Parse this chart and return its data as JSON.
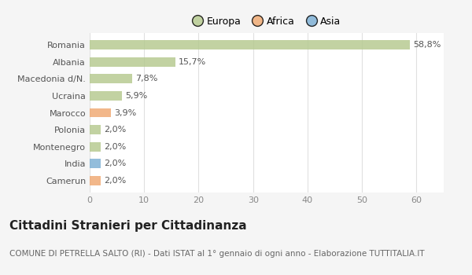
{
  "categories": [
    "Romania",
    "Albania",
    "Macedonia d/N.",
    "Ucraina",
    "Marocco",
    "Polonia",
    "Montenegro",
    "India",
    "Camerun"
  ],
  "values": [
    58.8,
    15.7,
    7.8,
    5.9,
    3.9,
    2.0,
    2.0,
    2.0,
    2.0
  ],
  "labels": [
    "58,8%",
    "15,7%",
    "7,8%",
    "5,9%",
    "3,9%",
    "2,0%",
    "2,0%",
    "2,0%",
    "2,0%"
  ],
  "colors": [
    "#b5c98e",
    "#b5c98e",
    "#b5c98e",
    "#b5c98e",
    "#f0a870",
    "#b5c98e",
    "#b5c98e",
    "#7bafd4",
    "#f0a870"
  ],
  "legend_labels": [
    "Europa",
    "Africa",
    "Asia"
  ],
  "legend_colors": [
    "#b5c98e",
    "#f0a870",
    "#7bafd4"
  ],
  "title": "Cittadini Stranieri per Cittadinanza",
  "subtitle": "COMUNE DI PETRELLA SALTO (RI) - Dati ISTAT al 1° gennaio di ogni anno - Elaborazione TUTTITALIA.IT",
  "xlim": [
    0,
    65
  ],
  "xticks": [
    0,
    10,
    20,
    30,
    40,
    50,
    60
  ],
  "background_color": "#f5f5f5",
  "plot_bg_color": "#ffffff",
  "grid_color": "#e0e0e0",
  "title_fontsize": 11,
  "subtitle_fontsize": 7.5,
  "label_fontsize": 8,
  "tick_fontsize": 8,
  "legend_fontsize": 9,
  "bar_height": 0.55
}
